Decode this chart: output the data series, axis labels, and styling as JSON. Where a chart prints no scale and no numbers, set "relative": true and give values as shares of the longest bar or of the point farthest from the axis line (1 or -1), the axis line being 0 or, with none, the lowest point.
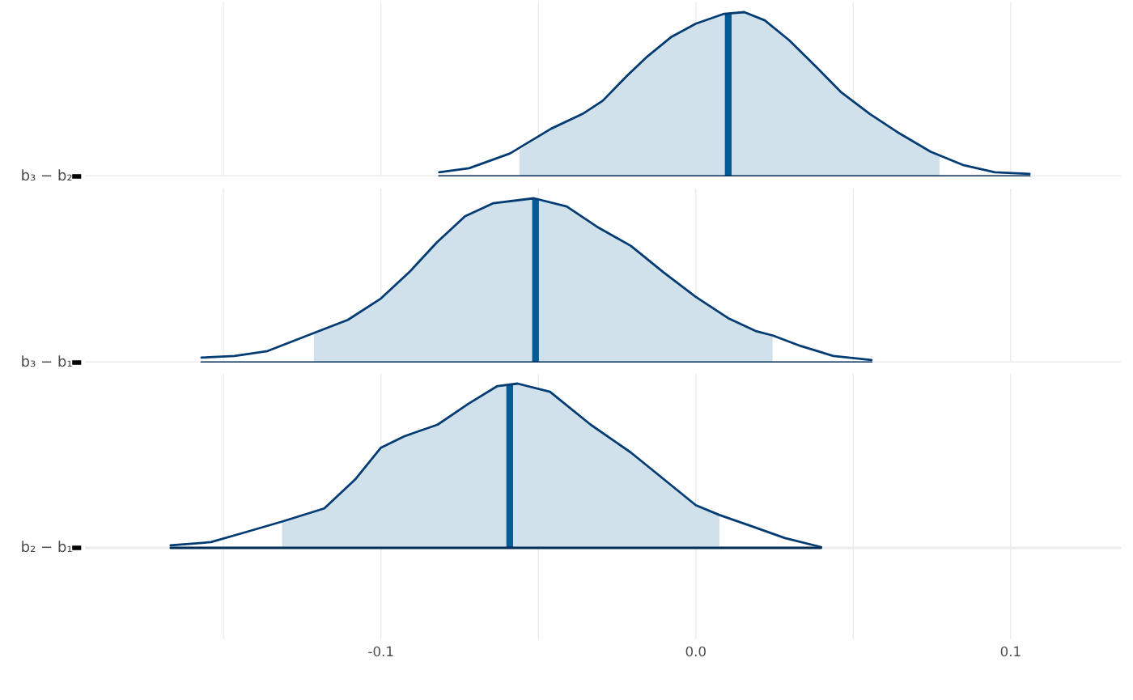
{
  "chart_data": [
    {
      "type": "area",
      "relative": true,
      "ylabel": "b₃ − b₂",
      "xlim": [
        -0.194,
        0.135
      ],
      "xticks": [
        {
          "value": -0.15,
          "label": null
        },
        -0.1,
        {
          "value": -0.05,
          "label": null
        },
        0.0,
        {
          "value": 0.05,
          "label": null
        },
        0.1
      ],
      "tick_labels": false,
      "grid": true,
      "series": [
        {
          "color": "#d1e1ec",
          "x": [
            -0.056,
            -0.046,
            -0.036,
            -0.0296,
            -0.022,
            -0.0154,
            -0.0077,
            0.0,
            0.009,
            0.0154,
            0.0219,
            0.0296,
            0.0386,
            0.0463,
            0.0553,
            0.064,
            0.0746,
            0.0774
          ],
          "values": [
            0.16,
            0.29,
            0.38,
            0.46,
            0.61,
            0.73,
            0.85,
            0.93,
            0.99,
            1.0,
            0.95,
            0.83,
            0.66,
            0.51,
            0.38,
            0.27,
            0.15,
            0.13
          ]
        },
        {
          "type": "line",
          "color": "#033c73",
          "x": [
            -0.0815,
            -0.072,
            -0.059,
            -0.046,
            -0.036,
            -0.0296,
            -0.022,
            -0.0154,
            -0.0077,
            0.0,
            0.009,
            0.0154,
            0.0219,
            0.0296,
            0.0386,
            0.0463,
            0.0553,
            0.064,
            0.0746,
            0.0848,
            0.095,
            0.106
          ],
          "values": [
            0.025,
            0.05,
            0.14,
            0.29,
            0.38,
            0.46,
            0.61,
            0.73,
            0.85,
            0.93,
            0.99,
            1.0,
            0.95,
            0.83,
            0.66,
            0.51,
            0.38,
            0.27,
            0.15,
            0.07,
            0.025,
            0.015
          ]
        }
      ],
      "ref_lines": [
        {
          "axis": "x",
          "value": 0.0103,
          "color": "#005b96"
        }
      ]
    },
    {
      "type": "area",
      "relative": true,
      "ylabel": "b₃ − b₁",
      "xlim": [
        -0.194,
        0.135
      ],
      "xticks": [
        {
          "value": -0.15,
          "label": null
        },
        -0.1,
        {
          "value": -0.05,
          "label": null
        },
        0.0,
        {
          "value": 0.05,
          "label": null
        },
        0.1
      ],
      "tick_labels": false,
      "grid": true,
      "series": [
        {
          "color": "#d1e1ec",
          "x": [
            -0.1213,
            -0.1105,
            -0.1,
            -0.091,
            -0.0823,
            -0.0733,
            -0.0643,
            -0.0514,
            -0.041,
            -0.0308,
            -0.0206,
            -0.0103,
            0.0,
            0.0103,
            0.0193,
            0.0244
          ],
          "values": [
            0.18,
            0.26,
            0.39,
            0.55,
            0.73,
            0.89,
            0.97,
            1.0,
            0.95,
            0.82,
            0.71,
            0.55,
            0.4,
            0.27,
            0.19,
            0.165
          ]
        },
        {
          "type": "line",
          "color": "#033c73",
          "x": [
            -0.157,
            -0.1465,
            -0.136,
            -0.1213,
            -0.1105,
            -0.1,
            -0.091,
            -0.0823,
            -0.0733,
            -0.0643,
            -0.0514,
            -0.041,
            -0.0308,
            -0.0206,
            -0.0103,
            0.0,
            0.0103,
            0.0193,
            0.0244,
            0.0334,
            0.0437,
            0.0558
          ],
          "values": [
            0.03,
            0.04,
            0.07,
            0.18,
            0.26,
            0.39,
            0.55,
            0.73,
            0.89,
            0.97,
            1.0,
            0.95,
            0.82,
            0.71,
            0.55,
            0.4,
            0.27,
            0.19,
            0.165,
            0.1,
            0.04,
            0.015
          ]
        }
      ],
      "ref_lines": [
        {
          "axis": "x",
          "value": -0.0509,
          "color": "#005b96"
        }
      ]
    },
    {
      "type": "area",
      "relative": true,
      "ylabel": "b₂ − b₁",
      "xlim": [
        -0.194,
        0.135
      ],
      "xticks": [
        {
          "value": -0.15,
          "label": null
        },
        {
          "value": -0.1,
          "label": "-0.1"
        },
        {
          "value": -0.05,
          "label": null
        },
        {
          "value": 0.0,
          "label": "0.0"
        },
        {
          "value": 0.05,
          "label": null
        },
        {
          "value": 0.1,
          "label": "0.1"
        }
      ],
      "grid": true,
      "series": [
        {
          "color": "#d1e1ec",
          "x": [
            -0.1314,
            -0.118,
            -0.108,
            -0.1,
            -0.0925,
            -0.082,
            -0.072,
            -0.063,
            -0.0566,
            -0.0463,
            -0.0334,
            -0.0206,
            -0.0103,
            0.0,
            0.0075
          ],
          "values": [
            0.16,
            0.24,
            0.42,
            0.61,
            0.68,
            0.75,
            0.88,
            0.985,
            1.0,
            0.95,
            0.75,
            0.58,
            0.42,
            0.26,
            0.2
          ]
        },
        {
          "type": "line",
          "color": "#033c73",
          "x": [
            -0.1668,
            -0.154,
            -0.144,
            -0.1314,
            -0.118,
            -0.108,
            -0.1,
            -0.0925,
            -0.082,
            -0.072,
            -0.063,
            -0.0566,
            -0.0463,
            -0.0334,
            -0.0206,
            -0.0103,
            0.0,
            0.0075,
            0.018,
            0.0283,
            0.0398
          ],
          "values": [
            0.015,
            0.035,
            0.09,
            0.16,
            0.24,
            0.42,
            0.61,
            0.68,
            0.75,
            0.88,
            0.985,
            1.0,
            0.95,
            0.75,
            0.58,
            0.42,
            0.26,
            0.2,
            0.13,
            0.06,
            0.005
          ]
        }
      ],
      "ref_lines": [
        {
          "axis": "x",
          "value": -0.0591,
          "color": "#005b96"
        }
      ]
    }
  ]
}
